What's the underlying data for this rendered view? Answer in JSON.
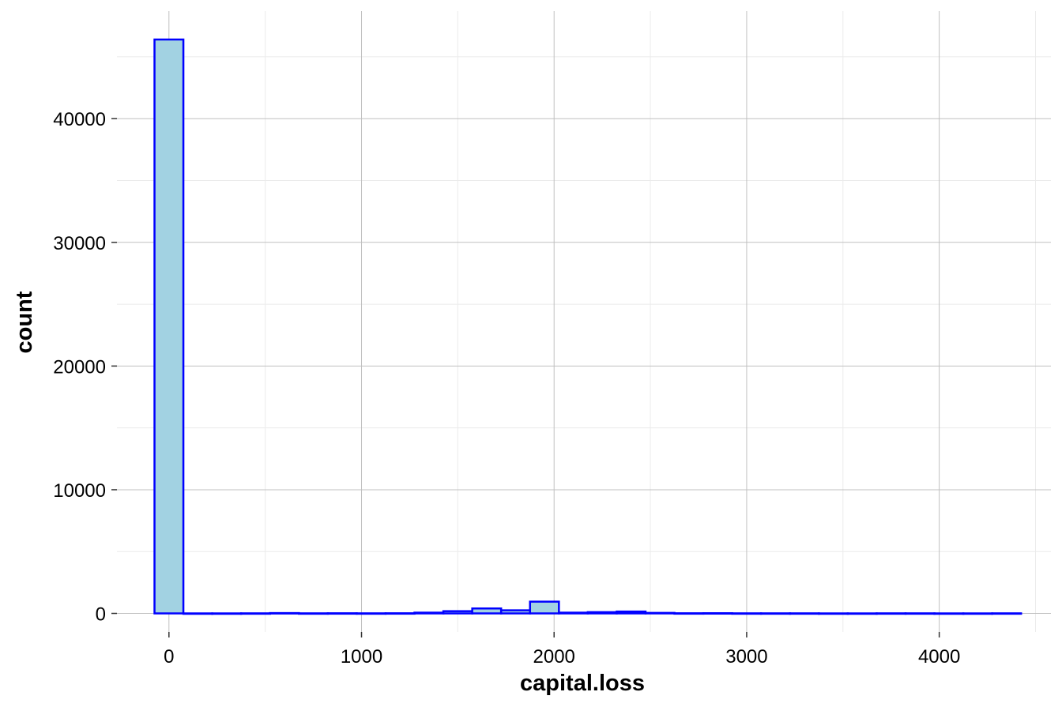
{
  "chart_data": {
    "type": "bar",
    "subtype": "histogram",
    "xlabel": "capital.loss",
    "ylabel": "count",
    "xlim": [
      -270,
      4580
    ],
    "ylim": [
      -1500,
      48700
    ],
    "x_ticks": [
      0,
      1000,
      2000,
      3000,
      4000
    ],
    "x_tick_labels": [
      "0",
      "1000",
      "2000",
      "3000",
      "4000"
    ],
    "y_ticks": [
      0,
      10000,
      20000,
      30000,
      40000
    ],
    "y_tick_labels": [
      "0",
      "10000",
      "20000",
      "30000",
      "40000"
    ],
    "grid": true,
    "bin_width": 150,
    "bins": [
      {
        "x0": -75,
        "x1": 75,
        "count": 46400
      },
      {
        "x0": 75,
        "x1": 225,
        "count": 0
      },
      {
        "x0": 225,
        "x1": 375,
        "count": 0
      },
      {
        "x0": 375,
        "x1": 525,
        "count": 5
      },
      {
        "x0": 525,
        "x1": 675,
        "count": 25
      },
      {
        "x0": 675,
        "x1": 825,
        "count": 5
      },
      {
        "x0": 825,
        "x1": 975,
        "count": 10
      },
      {
        "x0": 975,
        "x1": 1125,
        "count": 5
      },
      {
        "x0": 1125,
        "x1": 1275,
        "count": 10
      },
      {
        "x0": 1275,
        "x1": 1425,
        "count": 60
      },
      {
        "x0": 1425,
        "x1": 1575,
        "count": 180
      },
      {
        "x0": 1575,
        "x1": 1725,
        "count": 400
      },
      {
        "x0": 1725,
        "x1": 1875,
        "count": 250
      },
      {
        "x0": 1875,
        "x1": 2025,
        "count": 950
      },
      {
        "x0": 2025,
        "x1": 2175,
        "count": 60
      },
      {
        "x0": 2175,
        "x1": 2325,
        "count": 100
      },
      {
        "x0": 2325,
        "x1": 2475,
        "count": 150
      },
      {
        "x0": 2475,
        "x1": 2625,
        "count": 40
      },
      {
        "x0": 2625,
        "x1": 2775,
        "count": 10
      },
      {
        "x0": 2775,
        "x1": 2925,
        "count": 15
      },
      {
        "x0": 2925,
        "x1": 3075,
        "count": 5
      },
      {
        "x0": 3075,
        "x1": 3225,
        "count": 5
      },
      {
        "x0": 3225,
        "x1": 3375,
        "count": 5
      },
      {
        "x0": 3375,
        "x1": 3525,
        "count": 0
      },
      {
        "x0": 3525,
        "x1": 3675,
        "count": 0
      },
      {
        "x0": 3675,
        "x1": 3825,
        "count": 5
      },
      {
        "x0": 3825,
        "x1": 3975,
        "count": 5
      },
      {
        "x0": 3975,
        "x1": 4125,
        "count": 0
      },
      {
        "x0": 4125,
        "x1": 4275,
        "count": 0
      },
      {
        "x0": 4275,
        "x1": 4425,
        "count": 5
      }
    ],
    "colors": {
      "bar_fill": "#a2d2e2",
      "bar_stroke": "#0000ff",
      "grid_major": "#c0c0c0",
      "grid_minor": "#ebebeb",
      "tick": "#333333"
    }
  }
}
